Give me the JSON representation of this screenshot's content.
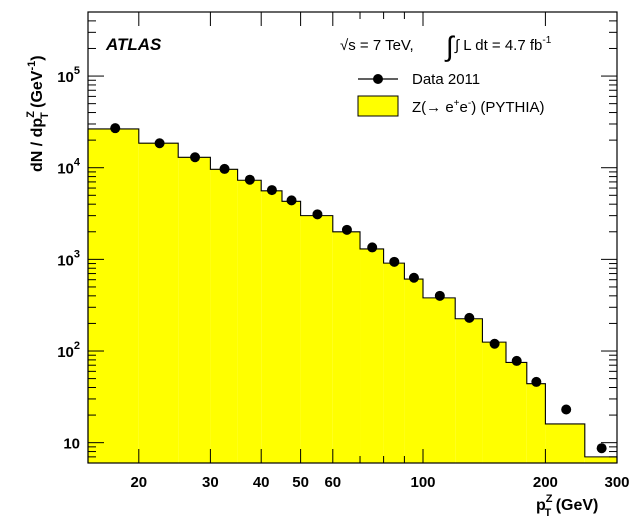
{
  "chart_data": {
    "type": "bar",
    "experiment_label": "ATLAS",
    "energy_text": "√s = 7 TeV,",
    "lumi_text": "∫ L dt = 4.7 fb",
    "lumi_sup": "-1",
    "xlabel": {
      "main": "p",
      "sup": "Z",
      "sub": "T",
      "unit": " (GeV)"
    },
    "ylabel": {
      "main": "dN / dp",
      "sup": "Z",
      "sub": "T",
      "unit": " (GeV",
      "unit_sup": "-1",
      "unit_close": ")"
    },
    "x_scale": "log",
    "y_scale": "log",
    "xlim": [
      15,
      300
    ],
    "ylim": [
      6,
      500000
    ],
    "x_ticks": [
      {
        "v": 20,
        "label": "20"
      },
      {
        "v": 30,
        "label": "30"
      },
      {
        "v": 40,
        "label": "40"
      },
      {
        "v": 50,
        "label": "50"
      },
      {
        "v": 60,
        "label": "60"
      },
      {
        "v": 100,
        "label": "100"
      },
      {
        "v": 200,
        "label": "200"
      },
      {
        "v": 300,
        "label": "300"
      }
    ],
    "y_ticks": [
      {
        "v": 10,
        "label": "10"
      },
      {
        "v": 100,
        "label": "10",
        "sup": "2"
      },
      {
        "v": 1000,
        "label": "10",
        "sup": "3"
      },
      {
        "v": 10000,
        "label": "10",
        "sup": "4"
      },
      {
        "v": 100000,
        "label": "10",
        "sup": "5"
      }
    ],
    "legend": {
      "position": "top-right",
      "entries": [
        {
          "label": "Data 2011",
          "style": "marker"
        },
        {
          "label_parts": [
            "Z(→ e",
            "+",
            "e",
            "-",
            ") (PYTHIA)"
          ],
          "style": "fill"
        }
      ]
    },
    "series": [
      {
        "name": "Z(→ e+e-) (PYTHIA)",
        "style": "step-fill",
        "color": "#ffff00",
        "bin_edges": [
          15,
          20,
          25,
          30,
          35,
          40,
          45,
          50,
          60,
          70,
          80,
          90,
          100,
          120,
          140,
          160,
          180,
          200,
          250,
          300
        ],
        "values": [
          26500,
          18500,
          13000,
          9600,
          7300,
          5600,
          4300,
          3000,
          2000,
          1300,
          910,
          610,
          380,
          225,
          125,
          75,
          44,
          16,
          7
        ]
      },
      {
        "name": "Data 2011",
        "style": "markers",
        "color": "#000000",
        "x": [
          17.5,
          22.5,
          27.5,
          32.5,
          37.5,
          42.5,
          47.5,
          55,
          65,
          75,
          85,
          95,
          110,
          130,
          150,
          170,
          190,
          225,
          275
        ],
        "y": [
          27000,
          18500,
          13000,
          9700,
          7400,
          5700,
          4400,
          3100,
          2100,
          1350,
          940,
          630,
          400,
          230,
          120,
          78,
          46,
          23,
          8.7
        ]
      }
    ]
  }
}
